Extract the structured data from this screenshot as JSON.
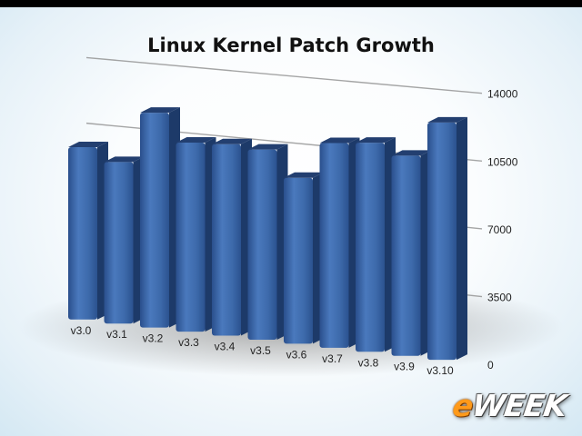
{
  "chart_data": {
    "type": "bar",
    "title": "Linux Kernel Patch Growth",
    "categories": [
      "v3.0",
      "v3.1",
      "v3.2",
      "v3.3",
      "v3.4",
      "v3.5",
      "v3.6",
      "v3.7",
      "v3.8",
      "v3.9",
      "v3.10"
    ],
    "values": [
      9200,
      8600,
      11400,
      10000,
      10100,
      10000,
      8700,
      10700,
      10900,
      10400,
      12300
    ],
    "y_ticks": [
      "0",
      "3500",
      "7000",
      "10500",
      "14000"
    ],
    "ylim": [
      0,
      14000
    ],
    "bar_color": "#3e6cae",
    "grid": true,
    "style": "3d-perspective"
  },
  "logo": {
    "prefix": "e",
    "rest": "WEEK"
  }
}
